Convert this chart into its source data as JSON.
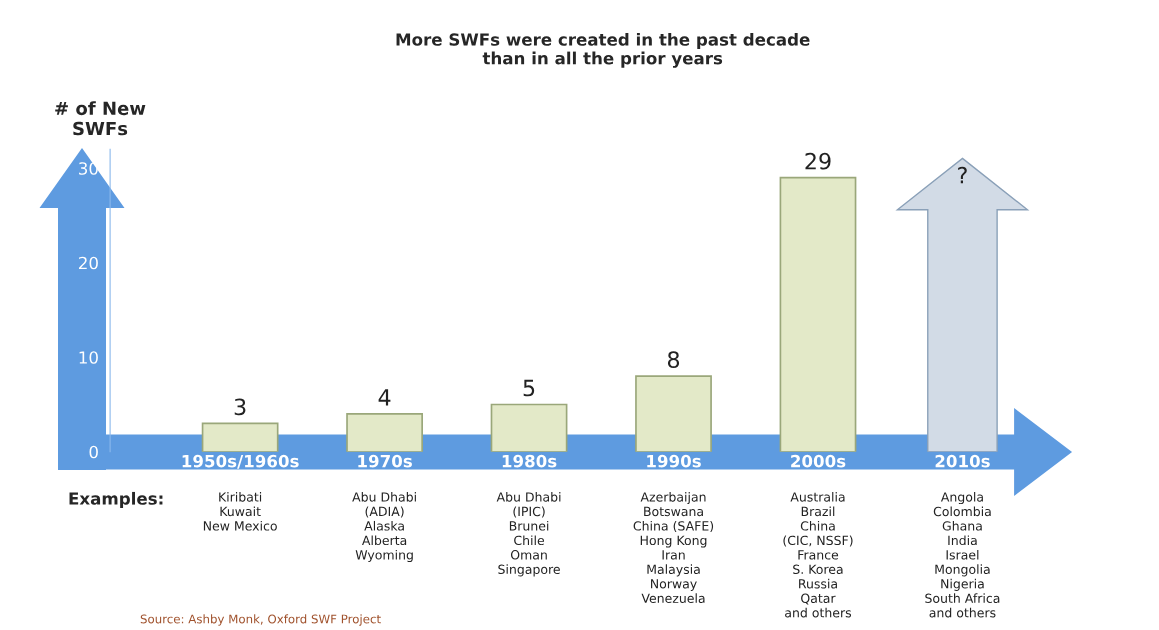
{
  "chart_data": {
    "type": "bar",
    "title": "More SWFs were created in the past decade\nthan in all the prior years",
    "ylabel": "# of New\nSWFs",
    "categories": [
      "1950s/1960s",
      "1970s",
      "1980s",
      "1990s",
      "2000s",
      "2010s"
    ],
    "values": [
      3,
      4,
      5,
      8,
      29,
      null
    ],
    "value_labels": [
      "3",
      "4",
      "5",
      "8",
      "29",
      "?"
    ],
    "color": "#e3e9c8",
    "ylim": [
      0,
      32
    ],
    "yticks": [
      0,
      10,
      20,
      30
    ],
    "grid": false,
    "annotations": [
      "Examples:",
      "Kiribati\nKuwait\nNew Mexico",
      "Abu Dhabi\n(ADIA)\nAlaska\nAlberta\nWyoming",
      "Abu Dhabi\n(IPIC)\nBrunei\nChile\nOman\nSingapore",
      "Azerbaijan\nBotswana\nChina (SAFE)\nHong Kong\nIran\nMalaysia\nNorway\nVenezuela",
      "Australia\nBrazil\nChina\n(CIC, NSSF)\nFrance\nS. Korea\nRussia\nQatar\nand others",
      "Angola\nColombia\nGhana\nIndia\nIsrael\nMongolia\nNigeria\nSouth Africa\nand others",
      "Source: Ashby Monk, Oxford SWF Project"
    ]
  }
}
